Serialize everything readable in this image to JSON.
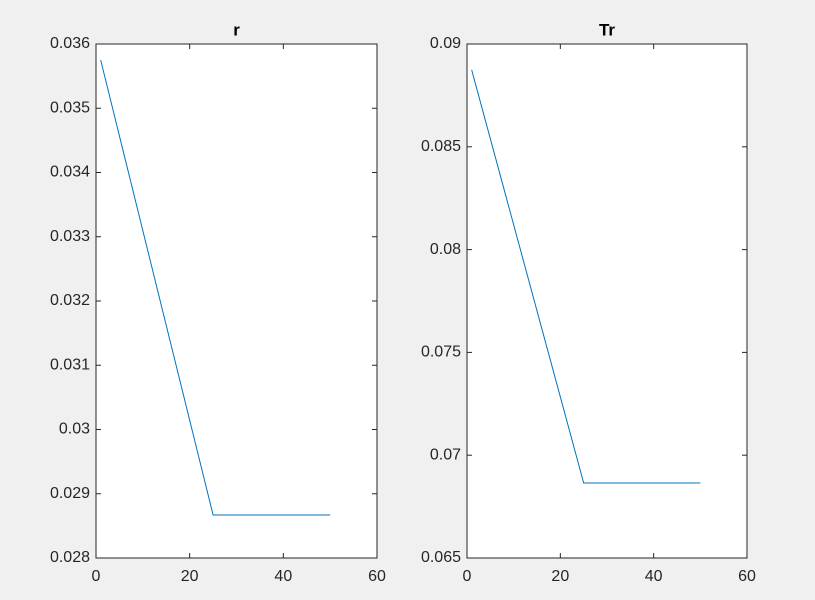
{
  "chart_data": [
    {
      "type": "line",
      "title": "r",
      "x": [
        1,
        25,
        50
      ],
      "series": [
        {
          "color": "#0072bd",
          "values": [
            0.03575,
            0.02867,
            0.02867
          ]
        }
      ],
      "xlim": [
        0,
        60
      ],
      "xticks": [
        0,
        20,
        40,
        60
      ],
      "ylim": [
        0.028,
        0.036
      ],
      "yticks": [
        0.028,
        0.029,
        0.03,
        0.031,
        0.032,
        0.033,
        0.034,
        0.035,
        0.036
      ]
    },
    {
      "type": "line",
      "title": "Tr",
      "x": [
        1,
        25,
        50
      ],
      "series": [
        {
          "color": "#0072bd",
          "values": [
            0.08874,
            0.06865,
            0.06865
          ]
        }
      ],
      "xlim": [
        0,
        60
      ],
      "xticks": [
        0,
        20,
        40,
        60
      ],
      "ylim": [
        0.065,
        0.09
      ],
      "yticks": [
        0.065,
        0.07,
        0.075,
        0.08,
        0.085,
        0.09
      ]
    }
  ]
}
